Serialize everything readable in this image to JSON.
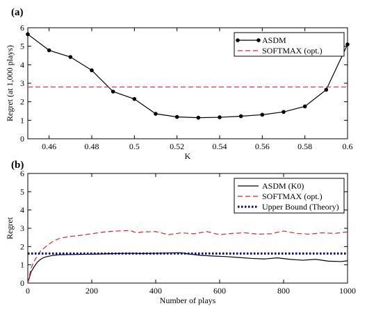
{
  "chart_data": [
    {
      "panel_label": "(a)",
      "type": "line",
      "xlabel": "K",
      "ylabel": "Regret (at 1,000 plays)",
      "xlim": [
        0.45,
        0.6
      ],
      "ylim": [
        0,
        6
      ],
      "xticks": [
        "0.46",
        "0.48",
        "0.5",
        "0.52",
        "0.54",
        "0.56",
        "0.58",
        "0.6"
      ],
      "yticks": [
        "0",
        "1",
        "2",
        "3",
        "4",
        "5",
        "6"
      ],
      "legend_position": "top-right",
      "series": [
        {
          "name": "ASDM",
          "color": "#000000",
          "style": "solid-with-dots",
          "x": [
            0.45,
            0.46,
            0.47,
            0.48,
            0.49,
            0.5,
            0.51,
            0.52,
            0.53,
            0.54,
            0.55,
            0.56,
            0.57,
            0.58,
            0.59,
            0.6
          ],
          "y": [
            5.65,
            4.78,
            4.42,
            3.7,
            2.55,
            2.15,
            1.35,
            1.18,
            1.14,
            1.16,
            1.22,
            1.3,
            1.45,
            1.75,
            2.65,
            5.1
          ]
        },
        {
          "name": "SOFTMAX (opt.)",
          "color": "#d62728",
          "style": "dashed",
          "x": [
            0.45,
            0.6
          ],
          "y": [
            2.8,
            2.8
          ]
        }
      ]
    },
    {
      "panel_label": "(b)",
      "type": "line",
      "xlabel": "Number of plays",
      "ylabel": "Regret",
      "xlim": [
        0,
        1000
      ],
      "ylim": [
        0,
        6
      ],
      "xticks": [
        "0",
        "200",
        "400",
        "600",
        "800",
        "1000"
      ],
      "yticks": [
        "0",
        "1",
        "2",
        "3",
        "4",
        "5",
        "6"
      ],
      "legend_position": "top-right",
      "series": [
        {
          "name": "ASDM (K0)",
          "color": "#000000",
          "style": "solid",
          "x": [
            0,
            10,
            20,
            30,
            40,
            50,
            60,
            80,
            100,
            130,
            160,
            200,
            240,
            280,
            320,
            360,
            400,
            440,
            480,
            500,
            540,
            580,
            620,
            660,
            700,
            740,
            780,
            820,
            860,
            900,
            940,
            980,
            1000
          ],
          "y": [
            0,
            0.6,
            0.9,
            1.15,
            1.3,
            1.4,
            1.45,
            1.52,
            1.55,
            1.56,
            1.57,
            1.58,
            1.6,
            1.62,
            1.63,
            1.62,
            1.63,
            1.65,
            1.66,
            1.6,
            1.52,
            1.48,
            1.45,
            1.4,
            1.35,
            1.32,
            1.38,
            1.3,
            1.25,
            1.3,
            1.2,
            1.18,
            1.22
          ]
        },
        {
          "name": "SOFTMAX (opt.)",
          "color": "#d62728",
          "style": "dashed",
          "x": [
            0,
            10,
            20,
            30,
            40,
            60,
            80,
            100,
            130,
            160,
            200,
            240,
            280,
            320,
            340,
            360,
            400,
            440,
            480,
            520,
            560,
            600,
            640,
            680,
            720,
            760,
            800,
            840,
            880,
            920,
            960,
            1000
          ],
          "y": [
            0,
            0.8,
            1.2,
            1.5,
            1.75,
            2.05,
            2.3,
            2.45,
            2.55,
            2.6,
            2.7,
            2.8,
            2.85,
            2.88,
            2.75,
            2.8,
            2.82,
            2.65,
            2.75,
            2.7,
            2.82,
            2.65,
            2.72,
            2.75,
            2.68,
            2.7,
            2.85,
            2.72,
            2.68,
            2.75,
            2.72,
            2.8
          ]
        },
        {
          "name": "Upper Bound (Theory)",
          "color": "#00008b",
          "style": "dotted",
          "x": [
            0,
            1000
          ],
          "y": [
            1.62,
            1.62
          ]
        }
      ]
    }
  ]
}
